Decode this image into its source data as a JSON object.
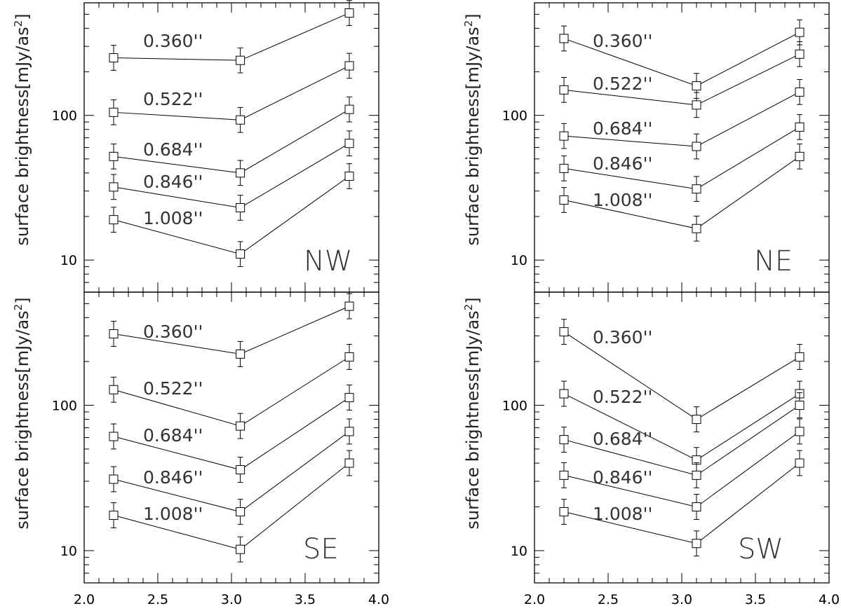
{
  "chart_data": [
    {
      "type": "line",
      "panel": "NW",
      "x": [
        2.2,
        3.06,
        3.8
      ],
      "xlim": [
        2.0,
        4.0
      ],
      "ylim": [
        6,
        600
      ],
      "yscale": "log",
      "ylabel": "",
      "yticks": [
        "10",
        "100"
      ],
      "xticks": [],
      "series": [
        {
          "name": "0.360''",
          "values": [
            250,
            240,
            510
          ]
        },
        {
          "name": "0.522''",
          "values": [
            105,
            93,
            220
          ]
        },
        {
          "name": "0.684''",
          "values": [
            52,
            40,
            110
          ]
        },
        {
          "name": "0.846''",
          "values": [
            32,
            23,
            64
          ]
        },
        {
          "name": "1.008''",
          "values": [
            19,
            11,
            38
          ]
        }
      ]
    },
    {
      "type": "line",
      "panel": "NE",
      "x": [
        2.2,
        3.1,
        3.8
      ],
      "xlim": [
        2.0,
        4.0
      ],
      "ylim": [
        6,
        600
      ],
      "yscale": "log",
      "ylabel": "",
      "yticks": [
        "10",
        "100"
      ],
      "xticks": [],
      "series": [
        {
          "name": "0.360''",
          "values": [
            340,
            160,
            375
          ]
        },
        {
          "name": "0.522''",
          "values": [
            150,
            118,
            265
          ]
        },
        {
          "name": "0.684''",
          "values": [
            72,
            61,
            145
          ]
        },
        {
          "name": "0.846''",
          "values": [
            43,
            31,
            83
          ]
        },
        {
          "name": "1.008''",
          "values": [
            26,
            16.5,
            52
          ]
        }
      ]
    },
    {
      "type": "line",
      "panel": "SE",
      "x": [
        2.2,
        3.06,
        3.8
      ],
      "xlim": [
        2.0,
        4.0
      ],
      "ylim": [
        6,
        600
      ],
      "yscale": "log",
      "ylabel": "surface brightness[mJy/as2]",
      "yticks": [
        "10",
        "100"
      ],
      "xticks": [
        "2.0",
        "2.5",
        "3.0",
        "3.5",
        "4.0"
      ],
      "series": [
        {
          "name": "0.360''",
          "values": [
            310,
            225,
            480
          ]
        },
        {
          "name": "0.522''",
          "values": [
            128,
            72,
            215
          ]
        },
        {
          "name": "0.684''",
          "values": [
            61,
            36,
            113
          ]
        },
        {
          "name": "0.846''",
          "values": [
            31,
            18.5,
            66
          ]
        },
        {
          "name": "1.008''",
          "values": [
            17.5,
            10.2,
            40
          ]
        }
      ]
    },
    {
      "type": "line",
      "panel": "SW",
      "x": [
        2.2,
        3.1,
        3.8
      ],
      "xlim": [
        2.0,
        4.0
      ],
      "ylim": [
        6,
        600
      ],
      "yscale": "log",
      "ylabel": "surface brightness[mJy/as2]",
      "yticks": [
        "10",
        "100"
      ],
      "xticks": [
        "2.0",
        "2.5",
        "3.0",
        "3.5",
        "4.0"
      ],
      "series": [
        {
          "name": "0.360''",
          "values": [
            320,
            80,
            215
          ]
        },
        {
          "name": "0.522''",
          "values": [
            120,
            42,
            120
          ]
        },
        {
          "name": "0.684''",
          "values": [
            58,
            33,
            100
          ]
        },
        {
          "name": "0.846''",
          "values": [
            33,
            20,
            66
          ]
        },
        {
          "name": "1.008''",
          "values": [
            18.5,
            11.2,
            40
          ]
        }
      ]
    }
  ],
  "top_ylabel": "surface brightness[mJy/as2]"
}
